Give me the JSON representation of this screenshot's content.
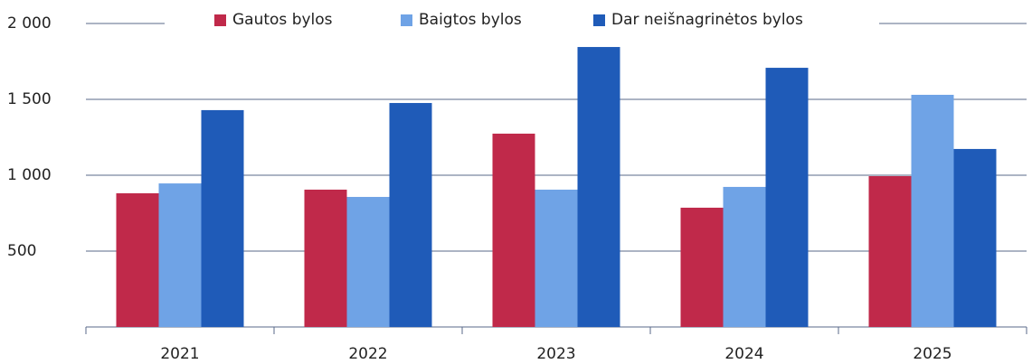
{
  "chart_data": {
    "type": "bar",
    "categories": [
      "2021",
      "2022",
      "2023",
      "2024",
      "2025"
    ],
    "series": [
      {
        "name": "Gautos bylos",
        "color": "#c0294a",
        "values": [
          881,
          905,
          1274,
          786,
          994
        ]
      },
      {
        "name": "Baigtos bylos",
        "color": "#6fa3e6",
        "values": [
          946,
          857,
          905,
          923,
          1530
        ]
      },
      {
        "name": "Dar neišnagrinėtos bylos",
        "color": "#1f5bb8",
        "values": [
          1429,
          1476,
          1845,
          1708,
          1173
        ]
      }
    ],
    "ylim": [
      0,
      2000
    ],
    "yticks": [
      {
        "value": 500,
        "label": "500"
      },
      {
        "value": 1000,
        "label": "1 000"
      },
      {
        "value": 1500,
        "label": "1 500"
      },
      {
        "value": 2000,
        "label": "2 000"
      }
    ],
    "grid": true,
    "legend": "top"
  }
}
